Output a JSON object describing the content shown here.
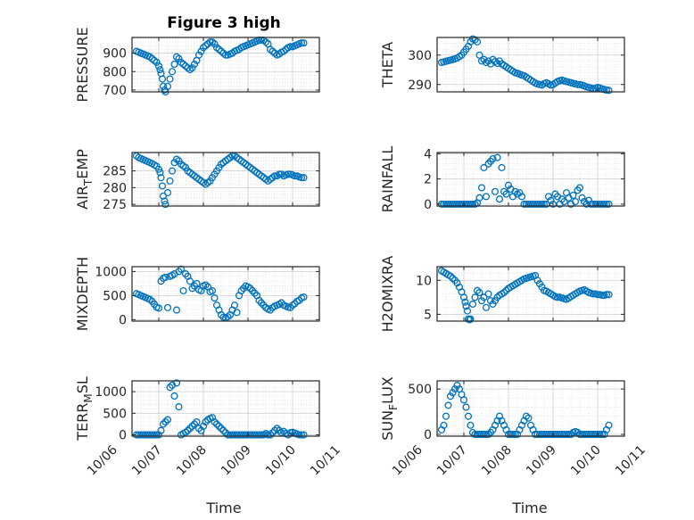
{
  "figure": {
    "title": "Figure 3 high",
    "x_tick_labels": [
      "10/06",
      "10/07",
      "10/08",
      "10/09",
      "10/10",
      "10/11"
    ],
    "xlabel": "Time",
    "marker_color": "#0072BD",
    "marker": "open-circle"
  },
  "chart_data": [
    {
      "type": "scatter",
      "ylabel": "PRESSURE",
      "ylim": [
        690,
        985
      ],
      "yticks": [
        700,
        800,
        900
      ],
      "xlim": [
        6.4,
        10.6
      ],
      "grid": true,
      "x": [
        6.5,
        6.55,
        6.6,
        6.65,
        6.7,
        6.75,
        6.8,
        6.85,
        6.9,
        6.95,
        7.0,
        7.03,
        7.05,
        7.08,
        7.1,
        7.13,
        7.15,
        7.2,
        7.25,
        7.3,
        7.35,
        7.4,
        7.45,
        7.5,
        7.55,
        7.6,
        7.65,
        7.7,
        7.75,
        7.8,
        7.85,
        7.9,
        7.95,
        8.0,
        8.05,
        8.1,
        8.15,
        8.2,
        8.25,
        8.3,
        8.35,
        8.4,
        8.45,
        8.5,
        8.55,
        8.6,
        8.65,
        8.7,
        8.75,
        8.8,
        8.85,
        8.9,
        8.95,
        9.0,
        9.05,
        9.1,
        9.15,
        9.2,
        9.25,
        9.3,
        9.35,
        9.4,
        9.45,
        9.5,
        9.55,
        9.6,
        9.65,
        9.7,
        9.75,
        9.8,
        9.85,
        9.9,
        9.95,
        10.0,
        10.05,
        10.1,
        10.15,
        10.2,
        10.25
      ],
      "y": [
        910,
        905,
        900,
        895,
        890,
        885,
        880,
        870,
        860,
        850,
        830,
        810,
        790,
        760,
        720,
        700,
        690,
        720,
        760,
        800,
        840,
        880,
        870,
        850,
        840,
        830,
        820,
        810,
        820,
        840,
        860,
        890,
        910,
        930,
        940,
        950,
        960,
        960,
        950,
        930,
        920,
        910,
        900,
        890,
        890,
        895,
        900,
        910,
        915,
        920,
        930,
        935,
        940,
        945,
        950,
        955,
        960,
        965,
        970,
        970,
        970,
        960,
        950,
        920,
        910,
        900,
        890,
        895,
        905,
        910,
        920,
        930,
        935,
        935,
        940,
        945,
        950,
        955,
        955
      ]
    },
    {
      "type": "scatter",
      "ylabel": "THETA",
      "ylim": [
        287.5,
        306
      ],
      "yticks": [
        290,
        300
      ],
      "xlim": [
        6.4,
        10.6
      ],
      "grid": true,
      "x": [
        6.5,
        6.55,
        6.6,
        6.65,
        6.7,
        6.75,
        6.8,
        6.85,
        6.9,
        6.95,
        7.0,
        7.05,
        7.1,
        7.15,
        7.2,
        7.25,
        7.3,
        7.35,
        7.4,
        7.45,
        7.5,
        7.55,
        7.6,
        7.65,
        7.7,
        7.75,
        7.8,
        7.85,
        7.9,
        7.95,
        8.0,
        8.05,
        8.1,
        8.15,
        8.2,
        8.25,
        8.3,
        8.35,
        8.4,
        8.45,
        8.5,
        8.55,
        8.6,
        8.65,
        8.7,
        8.75,
        8.8,
        8.85,
        8.9,
        8.95,
        9.0,
        9.05,
        9.1,
        9.15,
        9.2,
        9.25,
        9.3,
        9.35,
        9.4,
        9.45,
        9.5,
        9.55,
        9.6,
        9.65,
        9.7,
        9.75,
        9.8,
        9.85,
        9.9,
        9.95,
        10.0,
        10.05,
        10.1,
        10.15,
        10.2,
        10.25
      ],
      "y": [
        297.5,
        297.7,
        297.9,
        298.1,
        298.3,
        298.5,
        298.7,
        299,
        299.5,
        300,
        301,
        302,
        303,
        304.5,
        305.5,
        305.2,
        304.5,
        300,
        298,
        298.5,
        297.5,
        298,
        297,
        298.5,
        297.8,
        297.2,
        298,
        297,
        296.5,
        296,
        295.5,
        295,
        294.5,
        294,
        293.8,
        293.5,
        293.2,
        293,
        292.5,
        292,
        291.5,
        291,
        290.5,
        290.2,
        290,
        289.8,
        290.3,
        290.6,
        290.2,
        289.8,
        290,
        290.5,
        291,
        291.3,
        291.5,
        291.2,
        291,
        290.8,
        290.6,
        290.4,
        290.2,
        290,
        290,
        289.8,
        289.5,
        289.2,
        289,
        288.8,
        288.6,
        288.7,
        289,
        288.8,
        288.5,
        288.3,
        288.1,
        288
      ]
    },
    {
      "type": "scatter",
      "ylabel": "AIR_TEMP",
      "ylim": [
        274.5,
        290.5
      ],
      "yticks": [
        275,
        280,
        285
      ],
      "xlim": [
        6.4,
        10.6
      ],
      "grid": true,
      "x": [
        6.5,
        6.55,
        6.6,
        6.65,
        6.7,
        6.75,
        6.8,
        6.85,
        6.9,
        6.95,
        7.0,
        7.03,
        7.05,
        7.08,
        7.1,
        7.13,
        7.15,
        7.2,
        7.25,
        7.3,
        7.35,
        7.4,
        7.45,
        7.5,
        7.55,
        7.6,
        7.65,
        7.7,
        7.75,
        7.8,
        7.85,
        7.9,
        7.95,
        8.0,
        8.05,
        8.1,
        8.15,
        8.2,
        8.25,
        8.3,
        8.35,
        8.4,
        8.45,
        8.5,
        8.55,
        8.6,
        8.65,
        8.7,
        8.75,
        8.8,
        8.85,
        8.9,
        8.95,
        9.0,
        9.05,
        9.1,
        9.15,
        9.2,
        9.25,
        9.3,
        9.35,
        9.4,
        9.45,
        9.5,
        9.55,
        9.6,
        9.65,
        9.7,
        9.75,
        9.8,
        9.85,
        9.9,
        9.95,
        10.0,
        10.05,
        10.1,
        10.15,
        10.2,
        10.25
      ],
      "y": [
        289.5,
        289,
        288.7,
        288.4,
        288.1,
        287.8,
        287.5,
        287.2,
        286.8,
        286.4,
        285.5,
        284.5,
        283,
        280.5,
        277.5,
        276,
        275,
        278.5,
        282,
        285,
        287.5,
        288.5,
        288,
        287,
        286.5,
        286,
        285,
        284.5,
        284,
        283.5,
        283,
        282.5,
        282,
        281.5,
        281,
        281.5,
        282,
        283,
        284,
        285,
        286,
        287,
        287.5,
        288,
        288.5,
        289,
        289.5,
        289.5,
        289,
        288.5,
        288,
        287.5,
        287,
        286.5,
        286,
        285.5,
        285,
        284.5,
        284,
        283.5,
        283,
        282.5,
        282,
        282.5,
        283,
        283.5,
        283.5,
        284,
        284,
        283.5,
        283.8,
        284,
        284,
        283.8,
        283.5,
        283.5,
        283.2,
        283,
        283
      ]
    },
    {
      "type": "scatter",
      "ylabel": "RAINFALL",
      "ylim": [
        -0.15,
        4.1
      ],
      "yticks": [
        0,
        2,
        4
      ],
      "xlim": [
        6.4,
        10.6
      ],
      "grid": true,
      "x": [
        6.5,
        6.55,
        6.6,
        6.65,
        6.7,
        6.75,
        6.8,
        6.85,
        6.9,
        6.95,
        7.0,
        7.05,
        7.1,
        7.15,
        7.2,
        7.25,
        7.3,
        7.35,
        7.4,
        7.45,
        7.5,
        7.55,
        7.6,
        7.65,
        7.7,
        7.75,
        7.8,
        7.85,
        7.9,
        7.95,
        8.0,
        8.05,
        8.1,
        8.15,
        8.2,
        8.25,
        8.3,
        8.35,
        8.4,
        8.45,
        8.5,
        8.55,
        8.6,
        8.65,
        8.7,
        8.75,
        8.8,
        8.85,
        8.9,
        8.95,
        9.0,
        9.05,
        9.1,
        9.15,
        9.2,
        9.25,
        9.3,
        9.35,
        9.4,
        9.45,
        9.5,
        9.55,
        9.6,
        9.65,
        9.7,
        9.75,
        9.8,
        9.85,
        9.9,
        9.95,
        10.0,
        10.05,
        10.1,
        10.15,
        10.2,
        10.25
      ],
      "y": [
        0,
        0,
        0,
        0,
        0,
        0,
        0,
        0,
        0,
        0,
        0,
        0,
        0,
        0,
        0,
        0,
        0.1,
        0.5,
        1.3,
        2.9,
        0.6,
        3.2,
        3.4,
        3.6,
        1.0,
        3.7,
        0.4,
        2.9,
        1.0,
        0.8,
        1.5,
        1.2,
        0.6,
        1.0,
        0.8,
        0.9,
        0.6,
        0,
        0,
        0,
        0,
        0,
        0,
        0,
        0,
        0,
        0,
        0,
        0.6,
        0.3,
        0,
        0.8,
        0.6,
        0,
        0.4,
        0.2,
        0.9,
        0.5,
        0,
        0.7,
        0.2,
        1.1,
        1.3,
        0.5,
        0.2,
        0,
        0.3,
        0,
        0,
        0,
        0,
        0,
        0,
        0,
        0,
        0
      ]
    },
    {
      "type": "scatter",
      "ylabel": "MIXDEPTH",
      "ylim": [
        -30,
        1100
      ],
      "yticks": [
        0,
        500,
        1000
      ],
      "xlim": [
        6.4,
        10.6
      ],
      "grid": true,
      "x": [
        6.5,
        6.55,
        6.6,
        6.65,
        6.7,
        6.75,
        6.8,
        6.85,
        6.9,
        6.95,
        7.0,
        7.05,
        7.1,
        7.15,
        7.2,
        7.25,
        7.3,
        7.35,
        7.4,
        7.45,
        7.5,
        7.55,
        7.6,
        7.65,
        7.7,
        7.75,
        7.8,
        7.85,
        7.9,
        7.95,
        8.0,
        8.05,
        8.1,
        8.15,
        8.2,
        8.25,
        8.3,
        8.35,
        8.4,
        8.45,
        8.5,
        8.55,
        8.6,
        8.65,
        8.7,
        8.75,
        8.8,
        8.85,
        8.9,
        8.95,
        9.0,
        9.05,
        9.1,
        9.15,
        9.2,
        9.25,
        9.3,
        9.35,
        9.4,
        9.45,
        9.5,
        9.55,
        9.6,
        9.65,
        9.7,
        9.75,
        9.8,
        9.85,
        9.9,
        9.95,
        10.0,
        10.05,
        10.1,
        10.15,
        10.2,
        10.25
      ],
      "y": [
        540,
        520,
        500,
        480,
        460,
        440,
        420,
        380,
        320,
        260,
        240,
        800,
        860,
        880,
        250,
        900,
        920,
        950,
        200,
        1000,
        1050,
        600,
        950,
        900,
        800,
        650,
        700,
        750,
        620,
        600,
        700,
        720,
        680,
        580,
        600,
        450,
        300,
        200,
        100,
        50,
        40,
        60,
        100,
        200,
        300,
        150,
        500,
        600,
        650,
        700,
        680,
        650,
        600,
        550,
        500,
        400,
        350,
        300,
        250,
        220,
        200,
        250,
        280,
        300,
        320,
        350,
        300,
        280,
        260,
        250,
        300,
        330,
        380,
        400,
        450,
        470
      ]
    },
    {
      "type": "scatter",
      "ylabel": "H2OMIXRA",
      "ylim": [
        4,
        12
      ],
      "yticks": [
        5,
        10
      ],
      "xlim": [
        6.4,
        10.6
      ],
      "grid": true,
      "x": [
        6.5,
        6.55,
        6.6,
        6.65,
        6.7,
        6.75,
        6.8,
        6.85,
        6.9,
        6.95,
        7.0,
        7.03,
        7.05,
        7.08,
        7.1,
        7.13,
        7.15,
        7.2,
        7.25,
        7.3,
        7.35,
        7.4,
        7.45,
        7.5,
        7.55,
        7.6,
        7.65,
        7.7,
        7.75,
        7.8,
        7.85,
        7.9,
        7.95,
        8.0,
        8.05,
        8.1,
        8.15,
        8.2,
        8.25,
        8.3,
        8.35,
        8.4,
        8.45,
        8.5,
        8.55,
        8.6,
        8.65,
        8.7,
        8.75,
        8.8,
        8.85,
        8.9,
        8.95,
        9.0,
        9.05,
        9.1,
        9.15,
        9.2,
        9.25,
        9.3,
        9.35,
        9.4,
        9.45,
        9.5,
        9.55,
        9.6,
        9.65,
        9.7,
        9.75,
        9.8,
        9.85,
        9.9,
        9.95,
        10.0,
        10.05,
        10.1,
        10.15,
        10.2,
        10.25
      ],
      "y": [
        11.4,
        11.2,
        11,
        10.8,
        10.6,
        10.3,
        10,
        9.6,
        9,
        8.3,
        7.5,
        6.8,
        6.2,
        5.5,
        4.3,
        4.2,
        4.3,
        6.5,
        7.5,
        8.5,
        8.2,
        7,
        7.5,
        6,
        8,
        7,
        6.5,
        7,
        7.5,
        7.8,
        8,
        8.2,
        8.5,
        8.8,
        9,
        9.2,
        9.4,
        9.6,
        9.8,
        10,
        10.2,
        10.3,
        10.4,
        10.5,
        10.6,
        10.7,
        10,
        9.5,
        9,
        8.5,
        8.4,
        8.2,
        8,
        7.8,
        7.6,
        7.5,
        7.5,
        7.4,
        7.3,
        7.2,
        7.4,
        7.6,
        7.8,
        8,
        8.2,
        8.4,
        8.5,
        8.6,
        8.4,
        8.2,
        8.1,
        8,
        8,
        7.9,
        7.9,
        7.8,
        7.8,
        7.9,
        7.9
      ]
    },
    {
      "type": "scatter",
      "ylabel": "TERR_MSL",
      "ylim": [
        -30,
        1250
      ],
      "yticks": [
        0,
        500,
        1000
      ],
      "xlim": [
        6.4,
        10.6
      ],
      "grid": true,
      "x": [
        6.5,
        6.55,
        6.6,
        6.65,
        6.7,
        6.75,
        6.8,
        6.85,
        6.9,
        6.95,
        7.0,
        7.05,
        7.1,
        7.15,
        7.2,
        7.25,
        7.3,
        7.35,
        7.4,
        7.45,
        7.5,
        7.55,
        7.6,
        7.65,
        7.7,
        7.75,
        7.8,
        7.85,
        7.9,
        7.95,
        8.0,
        8.05,
        8.1,
        8.15,
        8.2,
        8.25,
        8.3,
        8.35,
        8.4,
        8.45,
        8.5,
        8.55,
        8.6,
        8.65,
        8.7,
        8.75,
        8.8,
        8.85,
        8.9,
        8.95,
        9.0,
        9.05,
        9.1,
        9.15,
        9.2,
        9.25,
        9.3,
        9.35,
        9.4,
        9.45,
        9.5,
        9.55,
        9.6,
        9.65,
        9.7,
        9.75,
        9.8,
        9.85,
        9.9,
        9.95,
        10.0,
        10.05,
        10.1,
        10.15,
        10.2,
        10.25
      ],
      "y": [
        0,
        0,
        0,
        0,
        0,
        0,
        0,
        0,
        0,
        0,
        0,
        100,
        250,
        300,
        350,
        1100,
        1150,
        900,
        1200,
        650,
        0,
        30,
        60,
        100,
        150,
        200,
        250,
        300,
        150,
        100,
        200,
        300,
        350,
        380,
        400,
        300,
        250,
        200,
        150,
        100,
        50,
        0,
        0,
        0,
        0,
        0,
        0,
        0,
        0,
        0,
        0,
        0,
        0,
        0,
        0,
        0,
        0,
        0,
        30,
        0,
        0,
        50,
        100,
        150,
        100,
        50,
        80,
        30,
        0,
        50,
        60,
        40,
        20,
        0,
        0,
        0
      ]
    },
    {
      "type": "scatter",
      "ylabel": "SUN_FLUX",
      "ylim": [
        -20,
        590
      ],
      "yticks": [
        0,
        500
      ],
      "xlim": [
        6.4,
        10.6
      ],
      "grid": true,
      "x": [
        6.5,
        6.55,
        6.6,
        6.65,
        6.7,
        6.75,
        6.8,
        6.85,
        6.9,
        6.95,
        7.0,
        7.05,
        7.1,
        7.15,
        7.2,
        7.25,
        7.3,
        7.35,
        7.4,
        7.45,
        7.5,
        7.55,
        7.6,
        7.65,
        7.7,
        7.75,
        7.8,
        7.85,
        7.9,
        7.95,
        8.0,
        8.05,
        8.1,
        8.15,
        8.2,
        8.25,
        8.3,
        8.35,
        8.4,
        8.45,
        8.5,
        8.55,
        8.6,
        8.65,
        8.7,
        8.75,
        8.8,
        8.85,
        8.9,
        8.95,
        9.0,
        9.05,
        9.1,
        9.15,
        9.2,
        9.25,
        9.3,
        9.35,
        9.4,
        9.45,
        9.5,
        9.55,
        9.6,
        9.65,
        9.7,
        9.75,
        9.8,
        9.85,
        9.9,
        9.95,
        10.0,
        10.05,
        10.1,
        10.15,
        10.2,
        10.25
      ],
      "y": [
        50,
        100,
        200,
        320,
        420,
        460,
        500,
        540,
        500,
        440,
        380,
        300,
        200,
        100,
        20,
        0,
        0,
        0,
        0,
        0,
        0,
        0,
        20,
        50,
        100,
        150,
        200,
        150,
        100,
        50,
        0,
        0,
        0,
        0,
        0,
        50,
        100,
        150,
        200,
        180,
        100,
        50,
        0,
        0,
        0,
        0,
        0,
        0,
        0,
        0,
        0,
        0,
        0,
        0,
        0,
        0,
        0,
        0,
        0,
        20,
        30,
        20,
        0,
        0,
        0,
        0,
        0,
        0,
        0,
        0,
        0,
        0,
        0,
        0,
        50,
        100
      ]
    }
  ]
}
